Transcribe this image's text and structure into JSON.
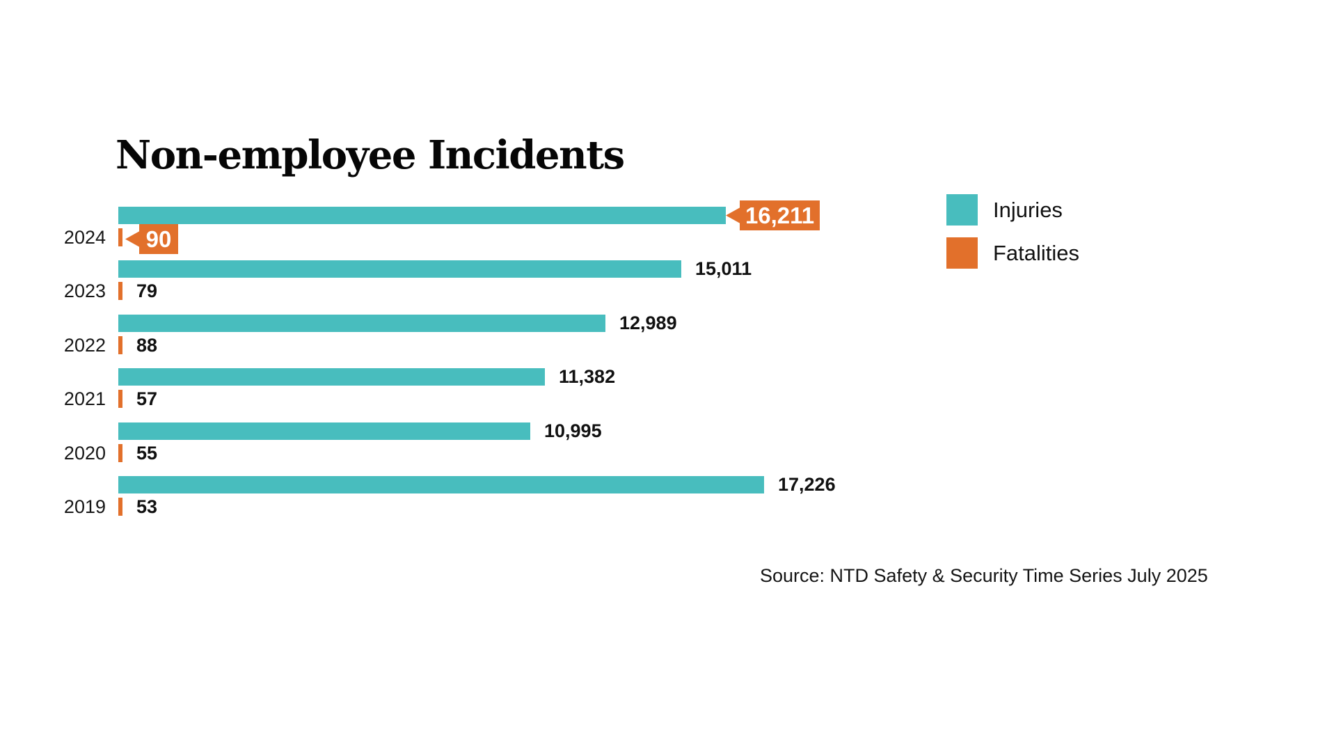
{
  "title": "Non-employee Incidents",
  "source": "Source: NTD Safety & Security Time Series July 2025",
  "legend": [
    {
      "label": "Injuries",
      "series": "injuries"
    },
    {
      "label": "Fatalities",
      "series": "fatalities"
    }
  ],
  "colors": {
    "injuries": "#48BDBE",
    "fatalities": "#E2702B",
    "callout_text": "#FFFFFF",
    "text": "#111111",
    "background": "#FFFFFF"
  },
  "chart_data": {
    "type": "bar",
    "orientation": "horizontal",
    "title": "Non-employee Incidents",
    "categories": [
      "2024",
      "2023",
      "2022",
      "2021",
      "2020",
      "2019"
    ],
    "series": [
      {
        "name": "Injuries",
        "color": "#48BDBE",
        "values": [
          16211,
          15011,
          12989,
          11382,
          10995,
          17226
        ],
        "labels": [
          "16,211",
          "15,011",
          "12,989",
          "11,382",
          "10,995",
          "17,226"
        ]
      },
      {
        "name": "Fatalities",
        "color": "#E2702B",
        "values": [
          90,
          79,
          88,
          57,
          55,
          53
        ],
        "labels": [
          "90",
          "79",
          "88",
          "57",
          "55",
          "53"
        ]
      }
    ],
    "callout_category": "2024",
    "xlim": [
      0,
      17226
    ],
    "grid": false,
    "legend_position": "top-right"
  }
}
